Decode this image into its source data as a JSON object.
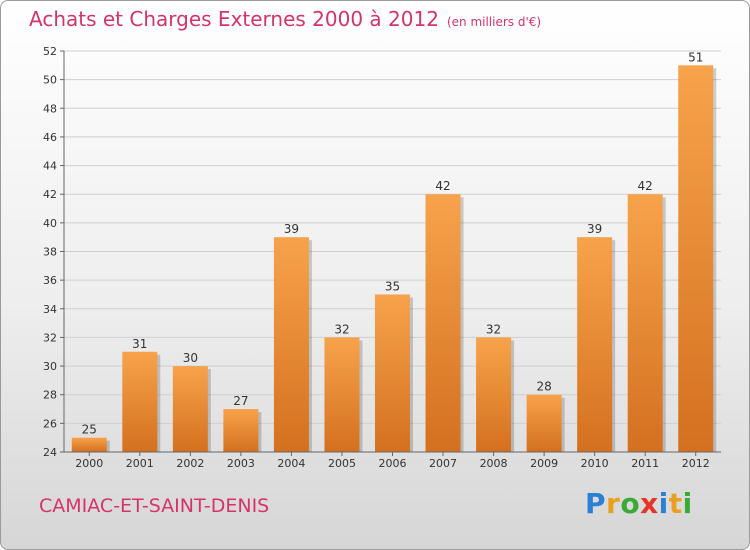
{
  "chart_data": {
    "type": "bar",
    "title": "Achats et Charges Externes 2000 à 2012",
    "subtitle": "(en milliers d'€)",
    "categories": [
      "2000",
      "2001",
      "2002",
      "2003",
      "2004",
      "2005",
      "2006",
      "2007",
      "2008",
      "2009",
      "2010",
      "2011",
      "2012"
    ],
    "values": [
      25,
      31,
      30,
      27,
      39,
      32,
      35,
      42,
      32,
      28,
      39,
      42,
      51
    ],
    "ylim": [
      24,
      52
    ],
    "yticks": [
      24,
      26,
      28,
      30,
      32,
      34,
      36,
      38,
      40,
      42,
      44,
      46,
      48,
      50,
      52
    ],
    "grid": true,
    "xlabel": "",
    "ylabel": "",
    "bar_color_top": "#f7a34b",
    "bar_color_bottom": "#d4701f"
  },
  "footer": {
    "commune": "CAMIAC-ET-SAINT-DENIS",
    "logo_letters": [
      {
        "ch": "P",
        "color": "#2b7fd4"
      },
      {
        "ch": "r",
        "color": "#e9a020"
      },
      {
        "ch": "o",
        "color": "#3aaa35"
      },
      {
        "ch": "x",
        "color": "#e63329"
      },
      {
        "ch": "i",
        "color": "#2b7fd4"
      },
      {
        "ch": "t",
        "color": "#e9a020"
      },
      {
        "ch": "i",
        "color": "#3aaa35"
      }
    ]
  }
}
